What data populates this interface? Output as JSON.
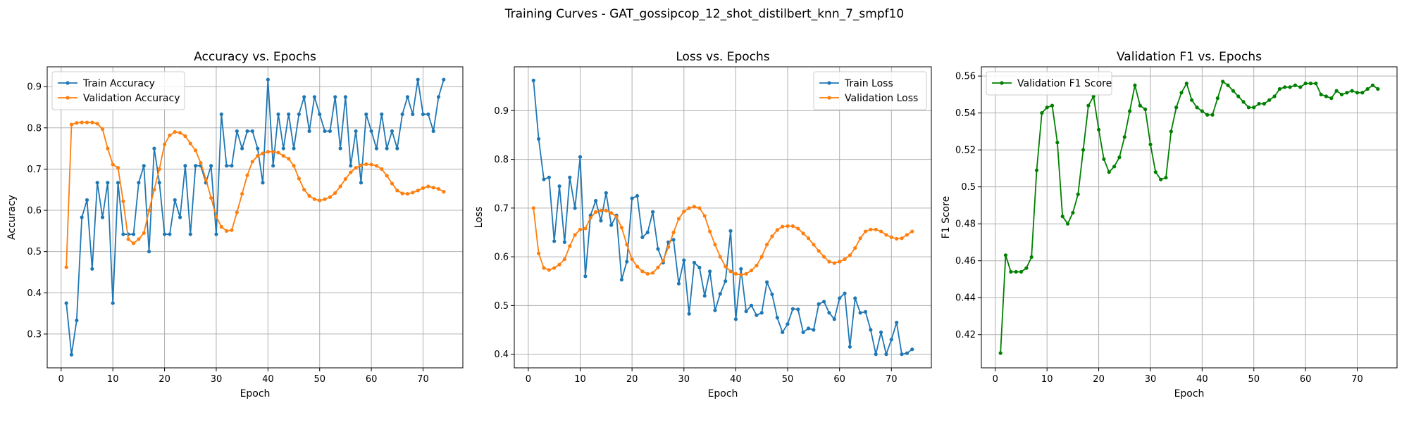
{
  "figure_title": "Training Curves - GAT_gossipcop_12_shot_distilbert_knn_7_smpf10",
  "chart_data": [
    {
      "type": "line",
      "title": "Accuracy vs. Epochs",
      "xlabel": "Epoch",
      "ylabel": "Accuracy",
      "xlim": [
        -2.7,
        77.7
      ],
      "ylim": [
        0.218,
        0.948
      ],
      "xticks": [
        0,
        10,
        20,
        30,
        40,
        50,
        60,
        70
      ],
      "yticks": [
        0.3,
        0.4,
        0.5,
        0.6,
        0.7,
        0.8,
        0.9
      ],
      "grid": true,
      "legend_position": "upper left",
      "x": [
        1,
        2,
        3,
        4,
        5,
        6,
        7,
        8,
        9,
        10,
        11,
        12,
        13,
        14,
        15,
        16,
        17,
        18,
        19,
        20,
        21,
        22,
        23,
        24,
        25,
        26,
        27,
        28,
        29,
        30,
        31,
        32,
        33,
        34,
        35,
        36,
        37,
        38,
        39,
        40,
        41,
        42,
        43,
        44,
        45,
        46,
        47,
        48,
        49,
        50,
        51,
        52,
        53,
        54,
        55,
        56,
        57,
        58,
        59,
        60,
        61,
        62,
        63,
        64,
        65,
        66,
        67,
        68,
        69,
        70,
        71,
        72,
        73,
        74
      ],
      "series": [
        {
          "name": "Train Accuracy",
          "color": "#1f77b4",
          "values": [
            0.375,
            0.25,
            0.333,
            0.583,
            0.625,
            0.458,
            0.667,
            0.583,
            0.667,
            0.375,
            0.667,
            0.542,
            0.542,
            0.542,
            0.667,
            0.708,
            0.5,
            0.75,
            0.667,
            0.542,
            0.542,
            0.625,
            0.583,
            0.708,
            0.542,
            0.708,
            0.708,
            0.667,
            0.708,
            0.542,
            0.833,
            0.708,
            0.708,
            0.792,
            0.75,
            0.792,
            0.792,
            0.75,
            0.667,
            0.917,
            0.708,
            0.833,
            0.75,
            0.833,
            0.75,
            0.833,
            0.875,
            0.792,
            0.875,
            0.833,
            0.792,
            0.792,
            0.875,
            0.75,
            0.875,
            0.708,
            0.792,
            0.667,
            0.833,
            0.792,
            0.75,
            0.833,
            0.75,
            0.792,
            0.75,
            0.833,
            0.875,
            0.833,
            0.917,
            0.833,
            0.833,
            0.792,
            0.875,
            0.917
          ]
        },
        {
          "name": "Validation Accuracy",
          "color": "#ff7f0e",
          "values": [
            0.462,
            0.808,
            0.812,
            0.813,
            0.813,
            0.813,
            0.81,
            0.797,
            0.75,
            0.711,
            0.703,
            0.622,
            0.53,
            0.52,
            0.53,
            0.545,
            0.6,
            0.65,
            0.7,
            0.76,
            0.782,
            0.79,
            0.788,
            0.78,
            0.762,
            0.745,
            0.715,
            0.675,
            0.63,
            0.585,
            0.56,
            0.55,
            0.552,
            0.595,
            0.64,
            0.685,
            0.718,
            0.732,
            0.738,
            0.742,
            0.742,
            0.74,
            0.732,
            0.725,
            0.708,
            0.677,
            0.65,
            0.635,
            0.627,
            0.624,
            0.627,
            0.632,
            0.642,
            0.658,
            0.676,
            0.692,
            0.703,
            0.709,
            0.712,
            0.711,
            0.708,
            0.7,
            0.684,
            0.665,
            0.648,
            0.641,
            0.64,
            0.643,
            0.648,
            0.654,
            0.658,
            0.655,
            0.652,
            0.645
          ]
        }
      ]
    },
    {
      "type": "line",
      "title": "Loss vs. Epochs",
      "xlabel": "Epoch",
      "ylabel": "Loss",
      "xlim": [
        -2.7,
        77.7
      ],
      "ylim": [
        0.372,
        0.99
      ],
      "xticks": [
        0,
        10,
        20,
        30,
        40,
        50,
        60,
        70
      ],
      "yticks": [
        0.4,
        0.5,
        0.6,
        0.7,
        0.8,
        0.9
      ],
      "grid": true,
      "legend_position": "upper right",
      "x": [
        1,
        2,
        3,
        4,
        5,
        6,
        7,
        8,
        9,
        10,
        11,
        12,
        13,
        14,
        15,
        16,
        17,
        18,
        19,
        20,
        21,
        22,
        23,
        24,
        25,
        26,
        27,
        28,
        29,
        30,
        31,
        32,
        33,
        34,
        35,
        36,
        37,
        38,
        39,
        40,
        41,
        42,
        43,
        44,
        45,
        46,
        47,
        48,
        49,
        50,
        51,
        52,
        53,
        54,
        55,
        56,
        57,
        58,
        59,
        60,
        61,
        62,
        63,
        64,
        65,
        66,
        67,
        68,
        69,
        70,
        71,
        72,
        73,
        74
      ],
      "series": [
        {
          "name": "Train Loss",
          "color": "#1f77b4",
          "values": [
            0.962,
            0.842,
            0.759,
            0.763,
            0.632,
            0.745,
            0.63,
            0.763,
            0.7,
            0.805,
            0.56,
            0.685,
            0.715,
            0.674,
            0.731,
            0.665,
            0.685,
            0.553,
            0.59,
            0.72,
            0.725,
            0.64,
            0.65,
            0.692,
            0.616,
            0.588,
            0.63,
            0.635,
            0.545,
            0.593,
            0.483,
            0.588,
            0.578,
            0.52,
            0.57,
            0.49,
            0.524,
            0.55,
            0.653,
            0.472,
            0.575,
            0.488,
            0.5,
            0.48,
            0.485,
            0.548,
            0.523,
            0.475,
            0.445,
            0.462,
            0.493,
            0.492,
            0.445,
            0.453,
            0.45,
            0.503,
            0.508,
            0.485,
            0.472,
            0.515,
            0.525,
            0.415,
            0.515,
            0.485,
            0.487,
            0.45,
            0.4,
            0.445,
            0.4,
            0.43,
            0.465,
            0.4,
            0.402,
            0.41
          ]
        },
        {
          "name": "Validation Loss",
          "color": "#ff7f0e",
          "values": [
            0.7,
            0.607,
            0.577,
            0.573,
            0.577,
            0.584,
            0.595,
            0.622,
            0.645,
            0.656,
            0.658,
            0.68,
            0.692,
            0.695,
            0.695,
            0.69,
            0.682,
            0.66,
            0.625,
            0.595,
            0.58,
            0.57,
            0.565,
            0.567,
            0.578,
            0.592,
            0.62,
            0.65,
            0.678,
            0.693,
            0.7,
            0.703,
            0.7,
            0.684,
            0.652,
            0.625,
            0.6,
            0.58,
            0.57,
            0.565,
            0.563,
            0.565,
            0.572,
            0.582,
            0.6,
            0.625,
            0.642,
            0.655,
            0.662,
            0.663,
            0.663,
            0.658,
            0.648,
            0.638,
            0.625,
            0.612,
            0.6,
            0.59,
            0.587,
            0.59,
            0.595,
            0.603,
            0.618,
            0.638,
            0.652,
            0.656,
            0.656,
            0.652,
            0.645,
            0.64,
            0.637,
            0.638,
            0.645,
            0.652
          ]
        }
      ]
    },
    {
      "type": "line",
      "title": "Validation F1 vs. Epochs",
      "xlabel": "Epoch",
      "ylabel": "F1 Score",
      "xlim": [
        -2.7,
        77.7
      ],
      "ylim": [
        0.402,
        0.565
      ],
      "xticks": [
        0,
        10,
        20,
        30,
        40,
        50,
        60,
        70
      ],
      "yticks": [
        0.42,
        0.44,
        0.46,
        0.48,
        0.5,
        0.52,
        0.54,
        0.56
      ],
      "grid": true,
      "legend_position": "upper left",
      "x": [
        1,
        2,
        3,
        4,
        5,
        6,
        7,
        8,
        9,
        10,
        11,
        12,
        13,
        14,
        15,
        16,
        17,
        18,
        19,
        20,
        21,
        22,
        23,
        24,
        25,
        26,
        27,
        28,
        29,
        30,
        31,
        32,
        33,
        34,
        35,
        36,
        37,
        38,
        39,
        40,
        41,
        42,
        43,
        44,
        45,
        46,
        47,
        48,
        49,
        50,
        51,
        52,
        53,
        54,
        55,
        56,
        57,
        58,
        59,
        60,
        61,
        62,
        63,
        64,
        65,
        66,
        67,
        68,
        69,
        70,
        71,
        72,
        73,
        74
      ],
      "series": [
        {
          "name": "Validation F1 Score",
          "color": "#008000",
          "values": [
            0.41,
            0.463,
            0.454,
            0.454,
            0.454,
            0.456,
            0.462,
            0.509,
            0.54,
            0.543,
            0.544,
            0.524,
            0.484,
            0.48,
            0.486,
            0.496,
            0.52,
            0.544,
            0.549,
            0.531,
            0.515,
            0.508,
            0.511,
            0.516,
            0.527,
            0.541,
            0.555,
            0.544,
            0.542,
            0.523,
            0.508,
            0.504,
            0.505,
            0.53,
            0.543,
            0.551,
            0.556,
            0.547,
            0.543,
            0.541,
            0.539,
            0.539,
            0.548,
            0.557,
            0.555,
            0.552,
            0.549,
            0.546,
            0.543,
            0.543,
            0.545,
            0.545,
            0.547,
            0.549,
            0.553,
            0.554,
            0.554,
            0.555,
            0.554,
            0.556,
            0.556,
            0.556,
            0.55,
            0.549,
            0.548,
            0.552,
            0.55,
            0.551,
            0.552,
            0.551,
            0.551,
            0.553,
            0.555,
            0.553
          ]
        }
      ]
    }
  ]
}
